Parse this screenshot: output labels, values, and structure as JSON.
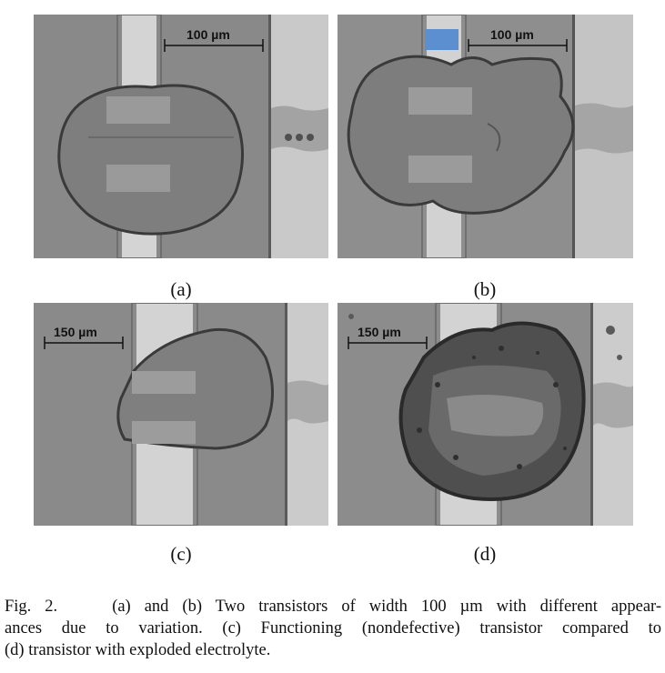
{
  "figure": {
    "panels": [
      {
        "id": "a",
        "label": "(a)",
        "scale_text": "100 µm"
      },
      {
        "id": "b",
        "label": "(b)",
        "scale_text": "100 µm"
      },
      {
        "id": "c",
        "label": "(c)",
        "scale_text": "150 µm"
      },
      {
        "id": "d",
        "label": "(d)",
        "scale_text": "150 µm"
      }
    ],
    "caption": {
      "prefix": "Fig. 2.",
      "line1": "(a) and (b) Two transistors of width 100 µm with different appear-",
      "line2": "ances due to variation. (c) Functioning (nondefective) transistor compared to",
      "line3": "(d) transistor with exploded electrolyte."
    }
  }
}
